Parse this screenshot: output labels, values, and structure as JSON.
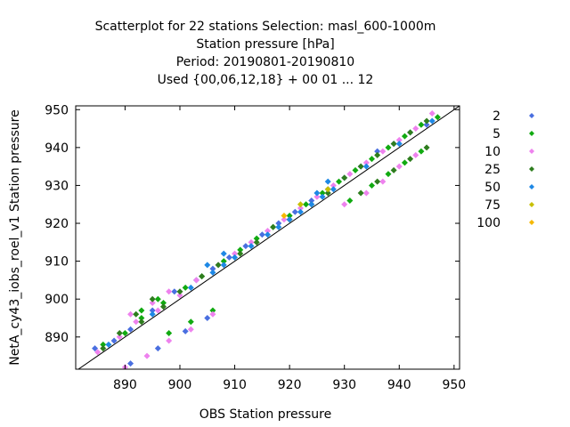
{
  "chart_data": {
    "type": "scatter",
    "title_lines": [
      "Scatterplot for   22 stations Selection: masl_600-1000m",
      "Station pressure [hPa]",
      "Period: 20190801-20190810",
      "Used {00,06,12,18} + 00 01 ... 12"
    ],
    "xlabel": "OBS Station pressure",
    "ylabel": "NetA_cy43_iobs_roel_v1 Station pressure",
    "xlim": [
      881,
      951
    ],
    "ylim": [
      881.5,
      951
    ],
    "xticks": [
      890,
      900,
      910,
      920,
      930,
      940,
      950
    ],
    "yticks": [
      890,
      900,
      910,
      920,
      930,
      940,
      950
    ],
    "grid": false,
    "legend_position": "right",
    "diagonal": true,
    "series": [
      {
        "name": "2",
        "color": "#4a6fe0",
        "points": [
          [
            884.5,
            887
          ],
          [
            888,
            889
          ],
          [
            891,
            892
          ],
          [
            895,
            897
          ],
          [
            899,
            902
          ],
          [
            903,
            905
          ],
          [
            906,
            908
          ],
          [
            909,
            911
          ],
          [
            912,
            914
          ],
          [
            915,
            917
          ],
          [
            918,
            920
          ],
          [
            921,
            923
          ],
          [
            924,
            926
          ],
          [
            927,
            929
          ],
          [
            930,
            932
          ],
          [
            933,
            935
          ],
          [
            936,
            939
          ],
          [
            939,
            941
          ],
          [
            942,
            944
          ],
          [
            945,
            946
          ],
          [
            891,
            883
          ],
          [
            896,
            887
          ],
          [
            901,
            891.5
          ],
          [
            905,
            895
          ]
        ]
      },
      {
        "name": "5",
        "color": "#11aa11",
        "points": [
          [
            886,
            888
          ],
          [
            890,
            891
          ],
          [
            893,
            895
          ],
          [
            897,
            899
          ],
          [
            901,
            903
          ],
          [
            904,
            906
          ],
          [
            908,
            910
          ],
          [
            911,
            913
          ],
          [
            914,
            916
          ],
          [
            917,
            919
          ],
          [
            920,
            922
          ],
          [
            923,
            925
          ],
          [
            926,
            928
          ],
          [
            929,
            931
          ],
          [
            932,
            934
          ],
          [
            935,
            937
          ],
          [
            938,
            940
          ],
          [
            941,
            943
          ],
          [
            944,
            946
          ],
          [
            947,
            948
          ],
          [
            931,
            926
          ],
          [
            935,
            930
          ],
          [
            938,
            933
          ],
          [
            941,
            936
          ],
          [
            944,
            939
          ],
          [
            898,
            891
          ],
          [
            902,
            894
          ],
          [
            906,
            897
          ],
          [
            893,
            897
          ],
          [
            896,
            900
          ]
        ]
      },
      {
        "name": "10",
        "color": "#ee82ee",
        "points": [
          [
            885,
            886
          ],
          [
            889,
            890
          ],
          [
            892,
            894
          ],
          [
            896,
            897
          ],
          [
            900,
            901
          ],
          [
            903,
            905
          ],
          [
            907,
            909
          ],
          [
            910,
            912
          ],
          [
            913,
            915
          ],
          [
            916,
            918
          ],
          [
            919,
            921
          ],
          [
            922,
            924
          ],
          [
            925,
            927
          ],
          [
            928,
            930
          ],
          [
            931,
            933
          ],
          [
            934,
            936
          ],
          [
            937,
            939
          ],
          [
            940,
            942
          ],
          [
            943,
            945
          ],
          [
            946,
            949
          ],
          [
            890,
            882
          ],
          [
            894,
            885
          ],
          [
            898,
            889
          ],
          [
            902,
            892
          ],
          [
            906,
            896
          ],
          [
            930,
            925
          ],
          [
            934,
            928
          ],
          [
            937,
            931
          ],
          [
            940,
            935
          ],
          [
            943,
            938
          ],
          [
            891,
            896
          ],
          [
            895,
            899
          ],
          [
            898,
            902
          ]
        ]
      },
      {
        "name": "25",
        "color": "#2e7d1e",
        "points": [
          [
            886,
            887
          ],
          [
            889,
            891
          ],
          [
            893,
            894
          ],
          [
            897,
            898
          ],
          [
            900,
            902
          ],
          [
            904,
            906
          ],
          [
            907,
            909
          ],
          [
            911,
            912
          ],
          [
            914,
            915
          ],
          [
            917,
            919
          ],
          [
            920,
            921
          ],
          [
            924,
            925
          ],
          [
            927,
            928
          ],
          [
            930,
            932
          ],
          [
            933,
            935
          ],
          [
            936,
            938
          ],
          [
            939,
            941
          ],
          [
            942,
            944
          ],
          [
            945,
            947
          ],
          [
            933,
            928
          ],
          [
            936,
            931
          ],
          [
            939,
            934
          ],
          [
            942,
            937
          ],
          [
            945,
            940
          ],
          [
            892,
            896
          ],
          [
            895,
            900
          ]
        ]
      },
      {
        "name": "50",
        "color": "#1e88e5",
        "points": [
          [
            887,
            888
          ],
          [
            895,
            896
          ],
          [
            902,
            903
          ],
          [
            906,
            907
          ],
          [
            908,
            909
          ],
          [
            910,
            911
          ],
          [
            913,
            914
          ],
          [
            916,
            917
          ],
          [
            918,
            919
          ],
          [
            920,
            921
          ],
          [
            922,
            923
          ],
          [
            924,
            925
          ],
          [
            926,
            927
          ],
          [
            928,
            929
          ],
          [
            934,
            935
          ],
          [
            940,
            941
          ],
          [
            946,
            947
          ],
          [
            905,
            909
          ],
          [
            908,
            912
          ],
          [
            925,
            928
          ],
          [
            927,
            931
          ]
        ]
      },
      {
        "name": "75",
        "color": "#c8c000",
        "points": [
          [
            922,
            925
          ],
          [
            927,
            929
          ]
        ]
      },
      {
        "name": "100",
        "color": "#f5b800",
        "points": [
          [
            919,
            922
          ]
        ]
      }
    ]
  }
}
